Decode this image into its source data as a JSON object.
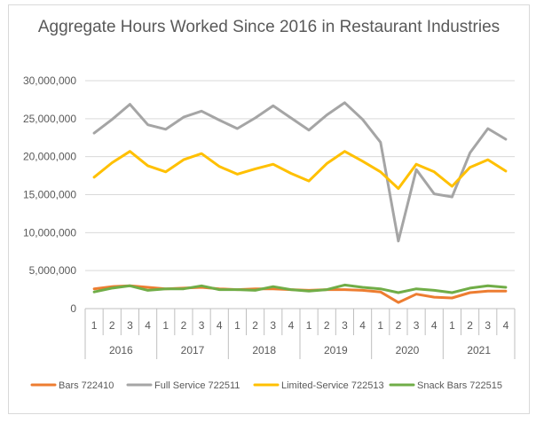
{
  "chart_data": {
    "type": "line",
    "title": "Aggregate Hours Worked Since 2016 in Restaurant Industries",
    "xlabel": "",
    "ylabel": "",
    "ylim": [
      0,
      30000000
    ],
    "y_ticks": [
      "0",
      "5,000,000",
      "10,000,000",
      "15,000,000",
      "20,000,000",
      "25,000,000",
      "30,000,000"
    ],
    "y_tick_values": [
      0,
      5000000,
      10000000,
      15000000,
      20000000,
      25000000,
      30000000
    ],
    "years": [
      "2016",
      "2017",
      "2018",
      "2019",
      "2020",
      "2021"
    ],
    "quarters": [
      "1",
      "2",
      "3",
      "4"
    ],
    "categories": [
      "2016 Q1",
      "2016 Q2",
      "2016 Q3",
      "2016 Q4",
      "2017 Q1",
      "2017 Q2",
      "2017 Q3",
      "2017 Q4",
      "2018 Q1",
      "2018 Q2",
      "2018 Q3",
      "2018 Q4",
      "2019 Q1",
      "2019 Q2",
      "2019 Q3",
      "2019 Q4",
      "2020 Q1",
      "2020 Q2",
      "2020 Q3",
      "2020 Q4",
      "2021 Q1",
      "2021 Q2",
      "2021 Q3",
      "2021 Q4"
    ],
    "grid": true,
    "legend_position": "bottom",
    "series": [
      {
        "name": "Bars 722410",
        "color": "#ed7d31",
        "values": [
          2600000,
          2900000,
          3000000,
          2800000,
          2600000,
          2700000,
          2800000,
          2600000,
          2500000,
          2600000,
          2600000,
          2500000,
          2400000,
          2500000,
          2500000,
          2400000,
          2200000,
          800000,
          1900000,
          1500000,
          1400000,
          2100000,
          2300000,
          2300000
        ]
      },
      {
        "name": "Full Service 722511",
        "color": "#a5a5a5",
        "values": [
          23100000,
          24900000,
          26900000,
          24200000,
          23600000,
          25200000,
          26000000,
          24800000,
          23700000,
          25100000,
          26700000,
          25100000,
          23500000,
          25500000,
          27100000,
          24900000,
          21900000,
          8900000,
          18300000,
          15100000,
          14700000,
          20500000,
          23700000,
          22300000
        ]
      },
      {
        "name": "Limited-Service 722513",
        "color": "#ffc000",
        "values": [
          17300000,
          19200000,
          20700000,
          18800000,
          18000000,
          19600000,
          20400000,
          18700000,
          17700000,
          18400000,
          19000000,
          17800000,
          16800000,
          19100000,
          20700000,
          19400000,
          18000000,
          15800000,
          19000000,
          18000000,
          16100000,
          18600000,
          19600000,
          18100000
        ]
      },
      {
        "name": "Snack Bars 722515",
        "color": "#70ad47",
        "values": [
          2200000,
          2700000,
          3000000,
          2400000,
          2600000,
          2600000,
          3000000,
          2500000,
          2500000,
          2400000,
          2900000,
          2500000,
          2300000,
          2500000,
          3100000,
          2800000,
          2600000,
          2100000,
          2600000,
          2400000,
          2100000,
          2700000,
          3000000,
          2800000
        ]
      }
    ]
  }
}
